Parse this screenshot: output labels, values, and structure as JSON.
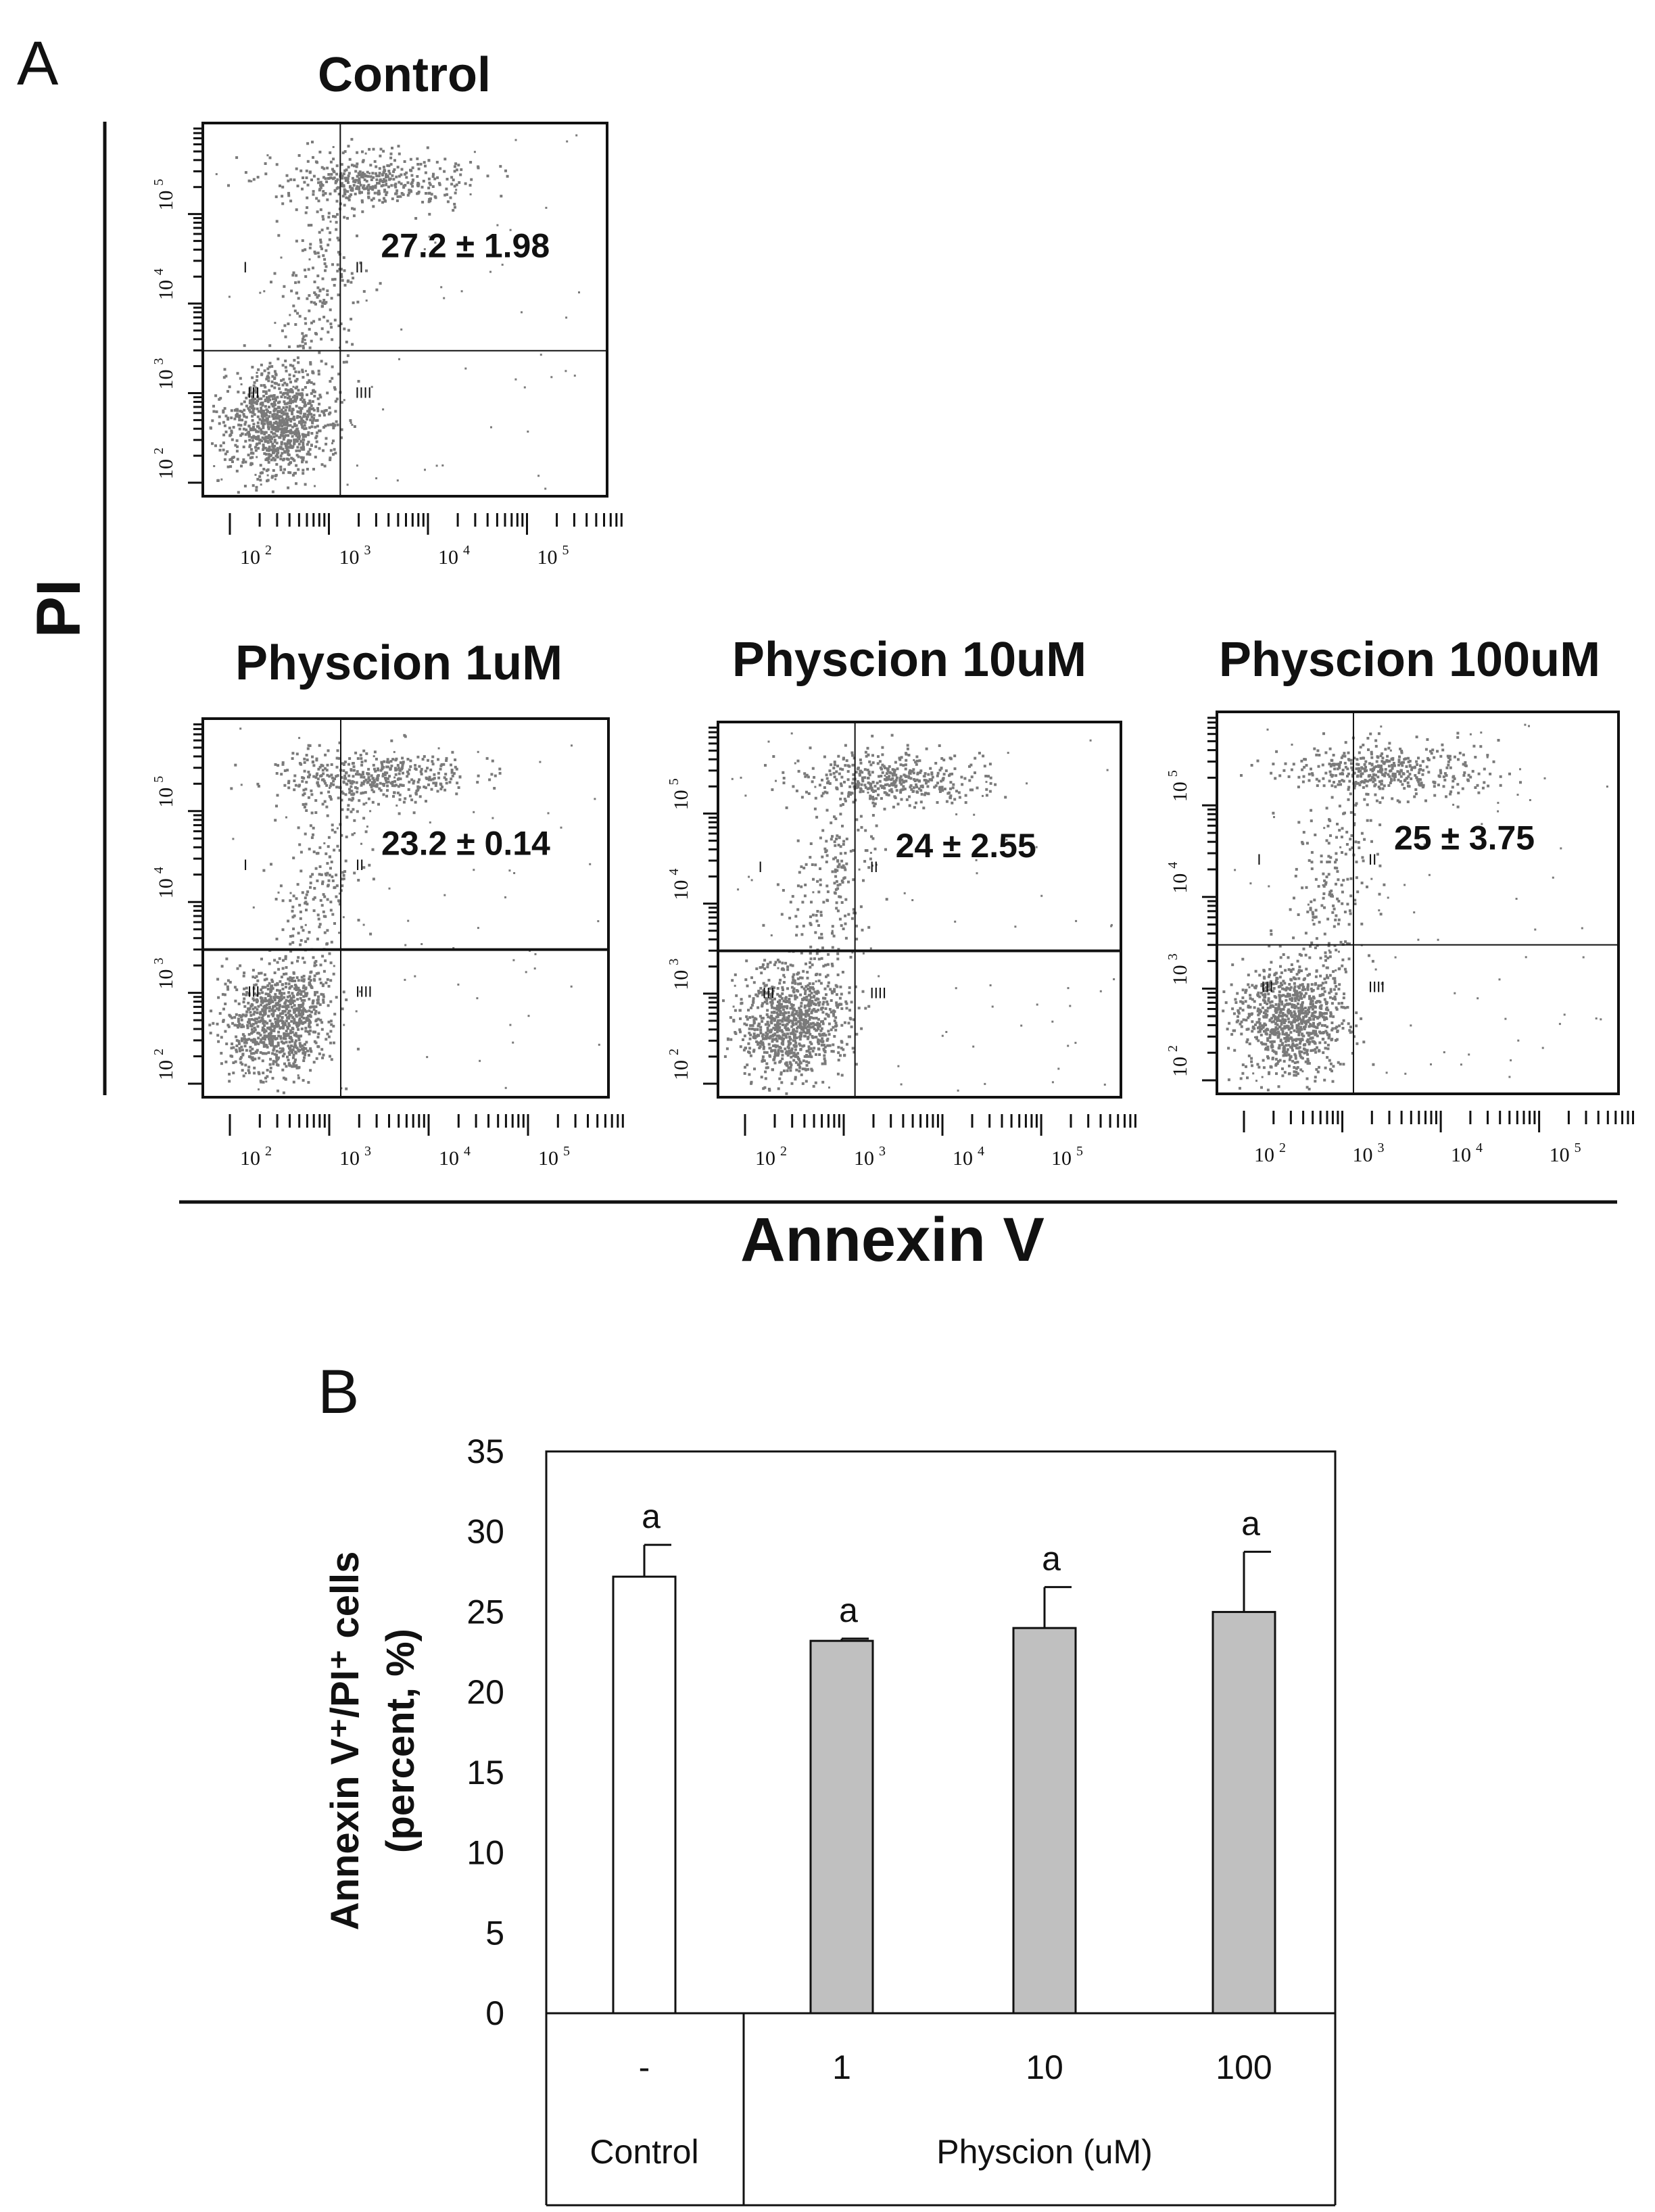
{
  "panel_a": {
    "letter": "A",
    "y_axis_label": "PI",
    "x_axis_label": "Annexin V",
    "x_ticks": [
      "10",
      "10",
      "10",
      "10"
    ],
    "x_tick_exponents": [
      "2",
      "3",
      "4",
      "5"
    ],
    "y_ticks": [
      "10",
      "10",
      "10",
      "10"
    ],
    "y_tick_exponents": [
      "2",
      "3",
      "4",
      "5"
    ],
    "quadrant_labels": [
      "I",
      "II",
      "III",
      "IIII"
    ],
    "plots": [
      {
        "title": "Control",
        "annotation": "27.2 ± 1.98"
      },
      {
        "title": "Physcion 1uM",
        "annotation": "23.2 ± 0.14"
      },
      {
        "title": "Physcion 10uM",
        "annotation": "24 ± 2.55"
      },
      {
        "title": "Physcion 100uM",
        "annotation": "25 ± 3.75"
      }
    ]
  },
  "panel_b": {
    "letter": "B",
    "y_axis_label_line1": "Annexin V⁺/PI⁺ cells",
    "y_axis_label_line2": "(percent, %)",
    "y_ticks": [
      "0",
      "5",
      "10",
      "15",
      "20",
      "25",
      "30",
      "35"
    ],
    "group_labels": [
      "Control",
      "Physcion (uM)"
    ]
  },
  "chart_data": {
    "type": "bar",
    "title": "",
    "ylabel": "Annexin V+/PI+ cells (percent, %)",
    "xlabel": "Physcion (uM)",
    "ylim": [
      0,
      35
    ],
    "categories": [
      "-",
      "1",
      "10",
      "100"
    ],
    "groups": [
      "Control",
      "Physcion (uM)",
      "Physcion (uM)",
      "Physcion (uM)"
    ],
    "values": [
      27.2,
      23.2,
      24,
      25
    ],
    "errors": [
      1.98,
      0.14,
      2.55,
      3.75
    ],
    "significance_letters": [
      "a",
      "a",
      "a",
      "a"
    ],
    "bar_colors": [
      "#ffffff",
      "#c0c0c0",
      "#c0c0c0",
      "#c0c0c0"
    ]
  }
}
